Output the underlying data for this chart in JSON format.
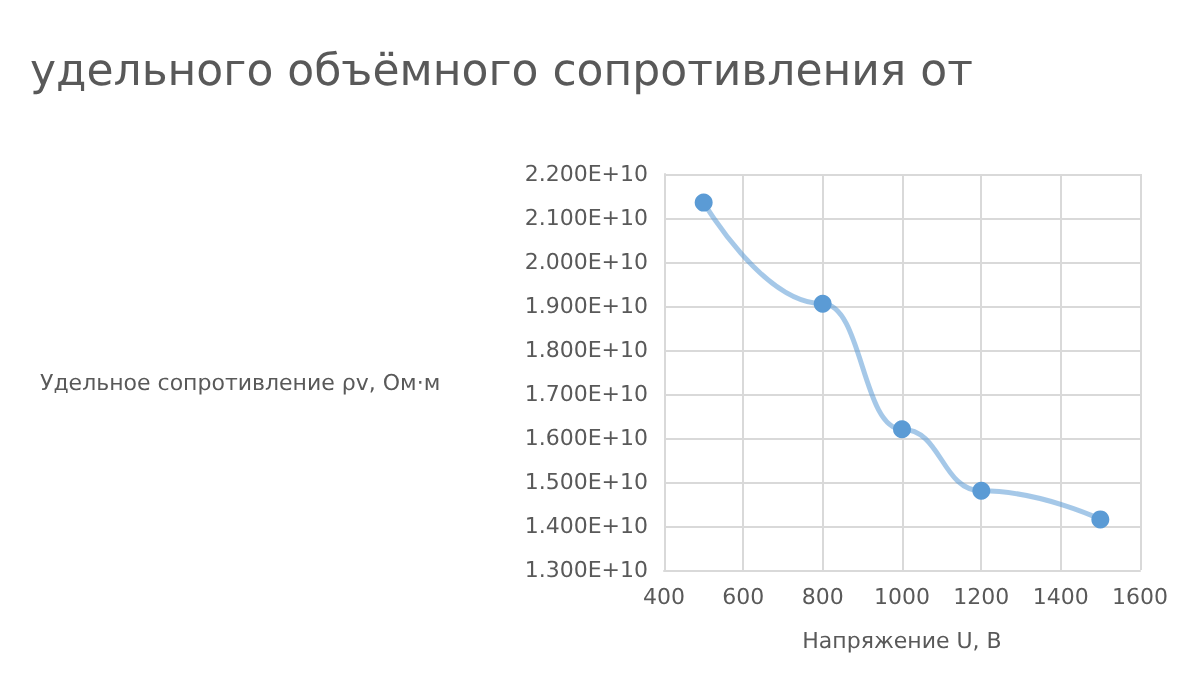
{
  "chart_data": {
    "type": "line",
    "title": "удельного объёмного сопротивления от",
    "xlabel": "Напряжение U, В",
    "ylabel": "Удельное сопротивление ρv, Ом·м",
    "x": [
      500,
      800,
      1000,
      1200,
      1500
    ],
    "series": [
      {
        "color": "#5b9bd5",
        "values": [
          21350000000,
          19050000000,
          16200000000,
          14800000000,
          14150000000
        ]
      }
    ],
    "xlim": [
      400,
      1600
    ],
    "xticks": [
      400,
      600,
      800,
      1000,
      1200,
      1400,
      1600
    ],
    "ylim": [
      13000000000,
      22000000000
    ],
    "yticks": [
      {
        "value": 13000000000,
        "label": "1.300E+10"
      },
      {
        "value": 14000000000,
        "label": "1.400E+10"
      },
      {
        "value": 15000000000,
        "label": "1.500E+10"
      },
      {
        "value": 16000000000,
        "label": "1.600E+10"
      },
      {
        "value": 17000000000,
        "label": "1.700E+10"
      },
      {
        "value": 18000000000,
        "label": "1.800E+10"
      },
      {
        "value": 19000000000,
        "label": "1.900E+10"
      },
      {
        "value": 20000000000,
        "label": "2.000E+10"
      },
      {
        "value": 21000000000,
        "label": "2.100E+10"
      },
      {
        "value": 22000000000,
        "label": "2.200E+10"
      }
    ],
    "grid": true,
    "marker": "circle"
  }
}
